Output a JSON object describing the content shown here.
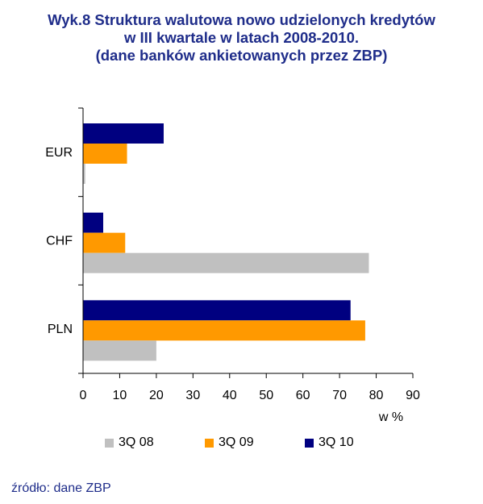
{
  "title_lines": [
    "Wyk.8 Struktura walutowa nowo udzielonych kredytów",
    "w III kwartale w latach 2008-2010.",
    "(dane  banków ankietowanych przez ZBP)"
  ],
  "source": "źródło: dane ZBP",
  "colors": {
    "3Q 08": "#c0c0c0",
    "3Q 09": "#ff9900",
    "3Q 10": "#000080",
    "title": "#1f2d8a"
  },
  "chart_data": {
    "type": "bar",
    "orientation": "horizontal",
    "categories": [
      "EUR",
      "CHF",
      "PLN"
    ],
    "series": [
      {
        "name": "3Q 10",
        "values": [
          22,
          5.5,
          73
        ]
      },
      {
        "name": "3Q 09",
        "values": [
          12,
          11.5,
          77
        ]
      },
      {
        "name": "3Q 08",
        "values": [
          0.6,
          78,
          20
        ]
      }
    ],
    "xlim": [
      0,
      90
    ],
    "xticks": [
      "0",
      "10",
      "20",
      "30",
      "40",
      "50",
      "60",
      "70",
      "80",
      "90"
    ],
    "xlabel": "w %",
    "legend": [
      "3Q 08",
      "3Q 09",
      "3Q 10"
    ],
    "legend_position": "bottom",
    "grid": false
  }
}
